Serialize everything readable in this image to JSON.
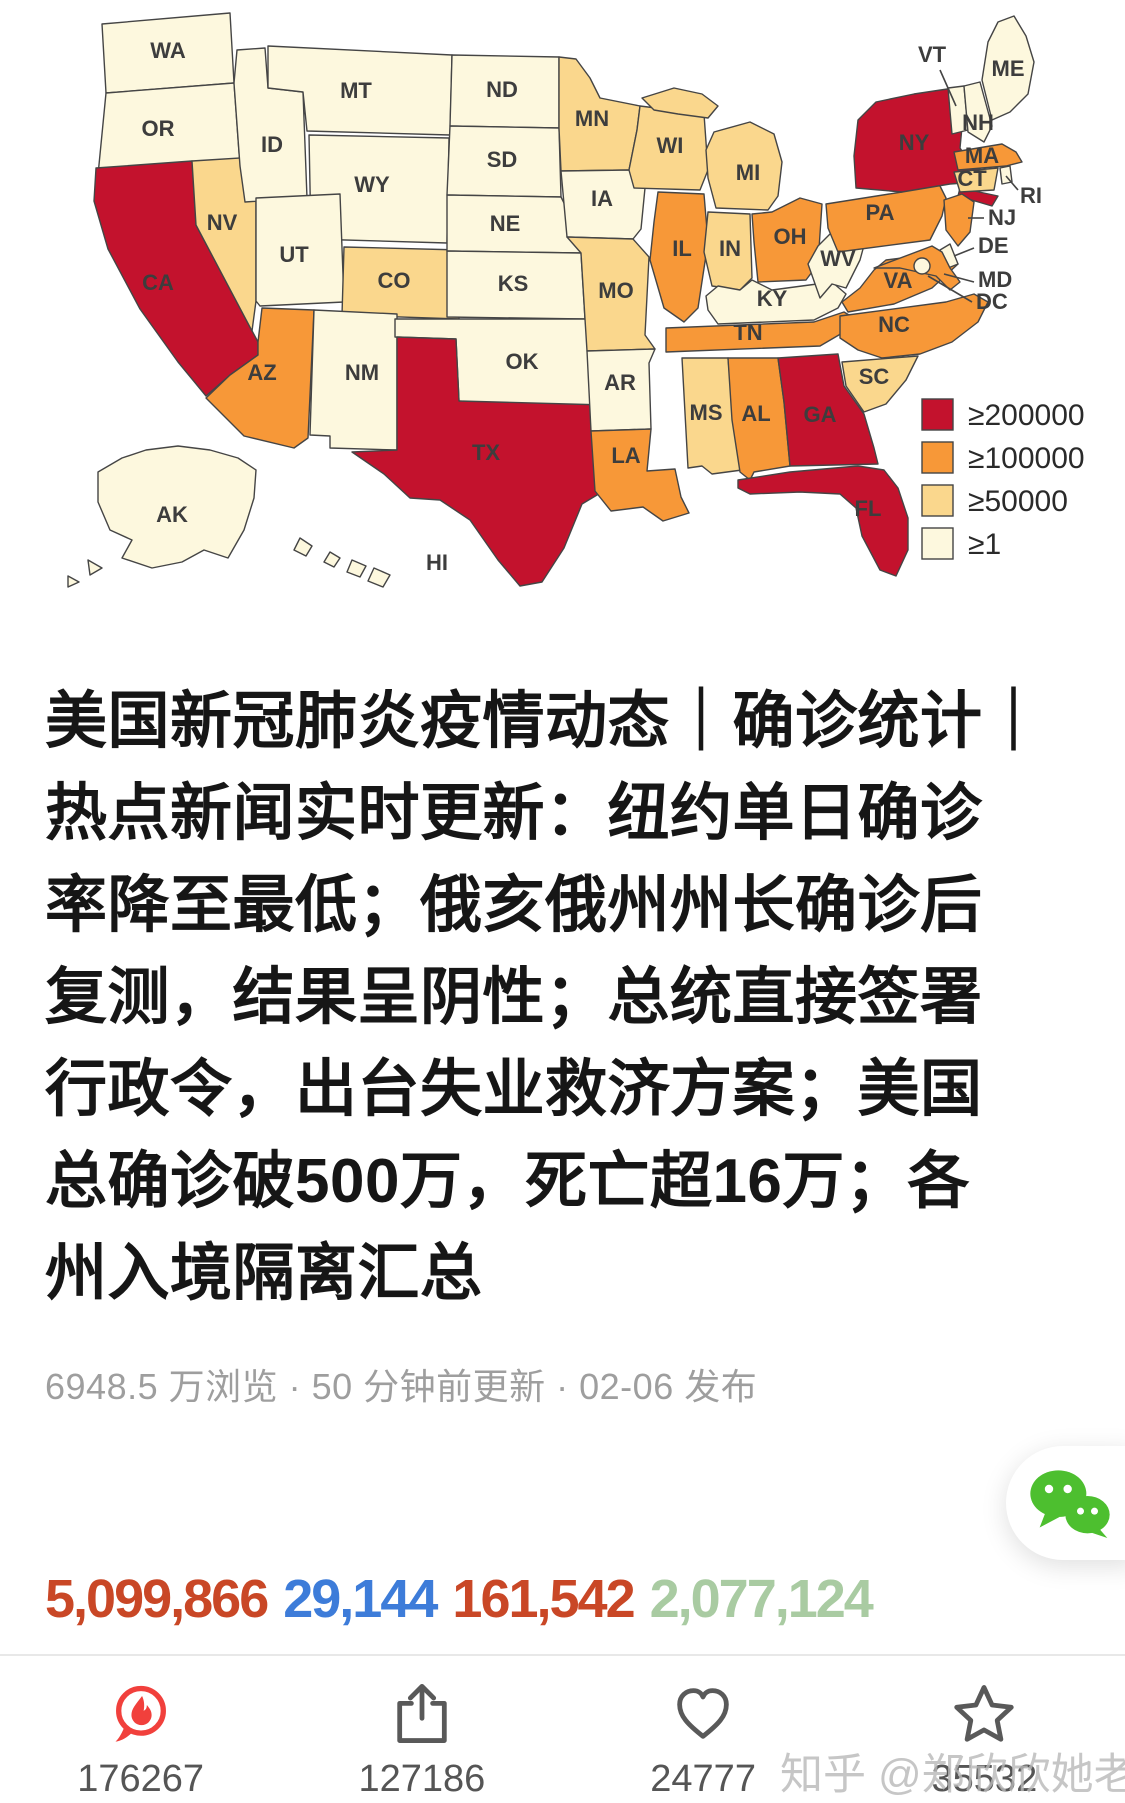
{
  "map": {
    "legend": [
      {
        "level": 4,
        "label": "≥200000",
        "color": "#C3122D"
      },
      {
        "level": 3,
        "label": "≥100000",
        "color": "#F79838"
      },
      {
        "level": 2,
        "label": "≥50000",
        "color": "#FAD78D"
      },
      {
        "level": 1,
        "label": "≥1",
        "color": "#FDF8DE"
      }
    ],
    "states": [
      {
        "code": "WA",
        "level": 1
      },
      {
        "code": "OR",
        "level": 1
      },
      {
        "code": "CA",
        "level": 4
      },
      {
        "code": "NV",
        "level": 2
      },
      {
        "code": "ID",
        "level": 1
      },
      {
        "code": "MT",
        "level": 1
      },
      {
        "code": "WY",
        "level": 1
      },
      {
        "code": "UT",
        "level": 1
      },
      {
        "code": "CO",
        "level": 2
      },
      {
        "code": "AZ",
        "level": 3
      },
      {
        "code": "NM",
        "level": 1
      },
      {
        "code": "ND",
        "level": 1
      },
      {
        "code": "SD",
        "level": 1
      },
      {
        "code": "NE",
        "level": 1
      },
      {
        "code": "KS",
        "level": 1
      },
      {
        "code": "OK",
        "level": 1
      },
      {
        "code": "TX",
        "level": 4
      },
      {
        "code": "MN",
        "level": 2
      },
      {
        "code": "IA",
        "level": 1
      },
      {
        "code": "MO",
        "level": 2
      },
      {
        "code": "AR",
        "level": 1
      },
      {
        "code": "LA",
        "level": 3
      },
      {
        "code": "WI",
        "level": 2
      },
      {
        "code": "IL",
        "level": 3
      },
      {
        "code": "MS",
        "level": 2
      },
      {
        "code": "MI",
        "level": 2
      },
      {
        "code": "IN",
        "level": 2
      },
      {
        "code": "OH",
        "level": 3
      },
      {
        "code": "KY",
        "level": 1
      },
      {
        "code": "TN",
        "level": 3
      },
      {
        "code": "AL",
        "level": 3
      },
      {
        "code": "GA",
        "level": 4
      },
      {
        "code": "FL",
        "level": 4
      },
      {
        "code": "SC",
        "level": 2
      },
      {
        "code": "NC",
        "level": 3
      },
      {
        "code": "VA",
        "level": 3
      },
      {
        "code": "WV",
        "level": 1
      },
      {
        "code": "PA",
        "level": 3
      },
      {
        "code": "NY",
        "level": 4
      },
      {
        "code": "VT",
        "level": 1
      },
      {
        "code": "NH",
        "level": 1
      },
      {
        "code": "ME",
        "level": 1
      },
      {
        "code": "MA",
        "level": 3
      },
      {
        "code": "CT",
        "level": 2
      },
      {
        "code": "RI",
        "level": 1
      },
      {
        "code": "NJ",
        "level": 3
      },
      {
        "code": "DE",
        "level": 1
      },
      {
        "code": "MD",
        "level": 3
      },
      {
        "code": "AK",
        "level": 1
      },
      {
        "code": "HI",
        "level": 1
      },
      {
        "code": "DC",
        "level": 1
      }
    ]
  },
  "article": {
    "title_lines": [
      "美国新冠肺炎疫情动态｜确诊统计｜",
      "热点新闻实时更新：纽约单日确诊",
      "率降至最低；俄亥俄州州长确诊后",
      "复测，结果呈阴性；总统直接签署",
      "行政令，出台失业救济方案；美国",
      "总确诊破500万，死亡超16万；各",
      "州入境隔离汇总"
    ],
    "meta": "6948.5 万浏览 · 50 分钟前更新 · 02-06 发布"
  },
  "stats": [
    {
      "value": "5,099,866",
      "color": "#C94726"
    },
    {
      "value": "29,144",
      "color": "#3D7CD9"
    },
    {
      "value": "161,542",
      "color": "#C94726"
    },
    {
      "value": "2,077,124",
      "color": "#A9CBA2"
    }
  ],
  "actions": [
    {
      "icon": "hot-comment",
      "count": "176267"
    },
    {
      "icon": "share",
      "count": "127186"
    },
    {
      "icon": "heart",
      "count": "24777"
    },
    {
      "icon": "star",
      "count": "35532"
    }
  ],
  "wechat_button": {
    "icon": "wechat",
    "color": "#4DBF2F"
  },
  "watermark": "知乎 @郑欣欣她老公"
}
